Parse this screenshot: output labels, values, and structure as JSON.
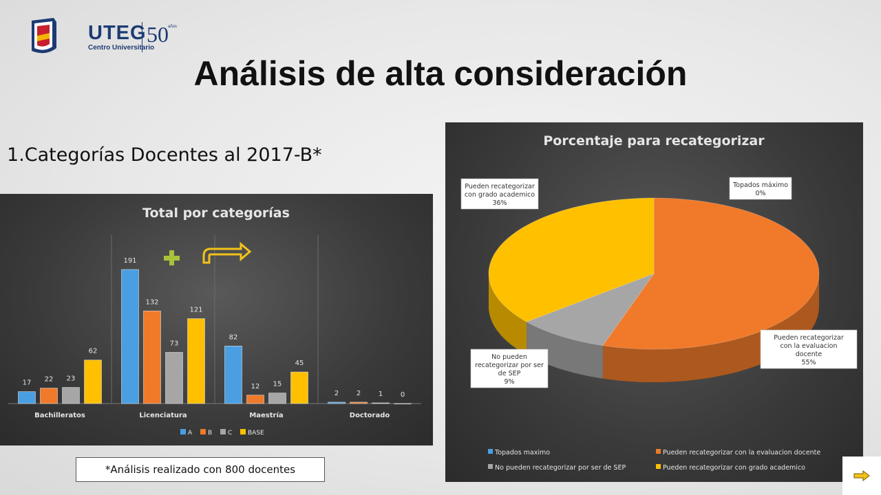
{
  "logo": {
    "name": "UTEG",
    "sub": "Centro Universitario",
    "anniv": "50",
    "anniv_small": "años"
  },
  "page": {
    "title": "Análisis de alta consideración",
    "subtitle": "1.Categorías Docentes al 2017-B*",
    "footnote": "*Análisis realizado con 800 docentes"
  },
  "colors": {
    "A": "#4a9fe3",
    "B": "#f07a2a",
    "C": "#a6a6a6",
    "BASE": "#ffc000",
    "panel": "#3f3f3f",
    "accent_plus": "#a8c23b",
    "arrow": "#f2c318"
  },
  "icons": {
    "plus": "plus-icon",
    "arrow": "turn-right-arrow-icon",
    "next": "next-arrow-icon"
  },
  "chart_data": [
    {
      "type": "bar",
      "title": "Total por categorías",
      "categories": [
        "Bachilleratos",
        "Licenciatura",
        "Maestría",
        "Doctorado"
      ],
      "series": [
        {
          "name": "A",
          "values": [
            17,
            191,
            82,
            2
          ]
        },
        {
          "name": "B",
          "values": [
            22,
            132,
            12,
            2
          ]
        },
        {
          "name": "C",
          "values": [
            23,
            73,
            15,
            1
          ]
        },
        {
          "name": "BASE",
          "values": [
            62,
            121,
            45,
            0
          ]
        }
      ],
      "ylim": [
        0,
        240
      ],
      "grid": false,
      "legend": "bottom"
    },
    {
      "type": "pie",
      "title": "Porcentaje para recategorizar",
      "categories": [
        "Topados maximo",
        "Pueden recategorizar con la evaluacion docente",
        "No pueden recategorizar por ser de SEP",
        "Pueden recategorizar con grado academico"
      ],
      "values": [
        0,
        55,
        9,
        36
      ],
      "labels": [
        {
          "text": "Topados máximo",
          "pct": "0%"
        },
        {
          "text": "Pueden recategorizar con la evaluacion docente",
          "pct": "55%"
        },
        {
          "text": "No pueden recategorizar por ser de SEP",
          "pct": "9%"
        },
        {
          "text": "Pueden recategorizar con grado academico",
          "pct": "36%"
        }
      ],
      "colors": [
        "#4a9fe3",
        "#f07a2a",
        "#a6a6a6",
        "#ffc000"
      ],
      "legend": "bottom"
    }
  ]
}
